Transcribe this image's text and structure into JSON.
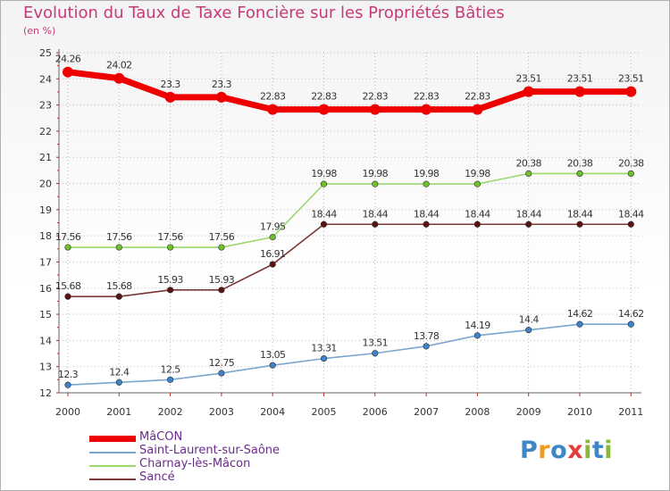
{
  "title": "Evolution du Taux de Taxe Foncière sur les Propriétés Bâties",
  "unit_label": "(en %)",
  "logo": {
    "text": "Proxiti",
    "letters": [
      "P",
      "r",
      "o",
      "x",
      "i",
      "t",
      "i"
    ]
  },
  "chart_data": {
    "type": "line",
    "title": "Evolution du Taux de Taxe Foncière sur les Propriétés Bâties",
    "ylabel": "(en %)",
    "xlabel": "",
    "x": [
      "2000",
      "2001",
      "2002",
      "2003",
      "2004",
      "2005",
      "2006",
      "2007",
      "2008",
      "2009",
      "2010",
      "2011"
    ],
    "ylim": [
      12,
      25
    ],
    "yticks": [
      12,
      13,
      14,
      15,
      16,
      17,
      18,
      19,
      20,
      21,
      22,
      23,
      24,
      25
    ],
    "grid": "dotted",
    "legend_position": "bottom-left",
    "series": [
      {
        "name": "MâCON",
        "color": "#ee0000",
        "values": [
          24.26,
          24.02,
          23.3,
          23.3,
          22.83,
          22.83,
          22.83,
          22.83,
          22.83,
          23.51,
          23.51,
          23.51
        ],
        "labels": [
          "24.26",
          "24.02",
          "23.3",
          "23.3",
          "22.83",
          "22.83",
          "22.83",
          "22.83",
          "22.83",
          "23.51",
          "23.51",
          "23.51"
        ]
      },
      {
        "name": "Saint-Laurent-sur-Saône",
        "color": "#7aa6cf",
        "marker_color": "#3d83c9",
        "values": [
          12.3,
          12.4,
          12.5,
          12.75,
          13.05,
          13.31,
          13.51,
          13.78,
          14.19,
          14.4,
          14.62,
          14.62
        ],
        "labels": [
          "12.3",
          "12.4",
          "12.5",
          "12.75",
          "13.05",
          "13.31",
          "13.51",
          "13.78",
          "14.19",
          "14.4",
          "14.62",
          "14.62"
        ]
      },
      {
        "name": "Charnay-lès-Mâcon",
        "color": "#9bd86a",
        "marker_color": "#6ec02c",
        "values": [
          17.56,
          17.56,
          17.56,
          17.56,
          17.95,
          19.98,
          19.98,
          19.98,
          19.98,
          20.38,
          20.38,
          20.38
        ],
        "labels": [
          "17.56",
          "17.56",
          "17.56",
          "17.56",
          "17.95",
          "19.98",
          "19.98",
          "19.98",
          "19.98",
          "20.38",
          "20.38",
          "20.38"
        ]
      },
      {
        "name": "Sancé",
        "color": "#7a3737",
        "marker_color": "#5a1212",
        "values": [
          15.68,
          15.68,
          15.93,
          15.93,
          16.91,
          18.44,
          18.44,
          18.44,
          18.44,
          18.44,
          18.44,
          18.44
        ],
        "labels": [
          "15.68",
          "15.68",
          "15.93",
          "15.93",
          "16.91",
          "18.44",
          "18.44",
          "18.44",
          "18.44",
          "18.44",
          "18.44",
          "18.44"
        ]
      }
    ]
  }
}
